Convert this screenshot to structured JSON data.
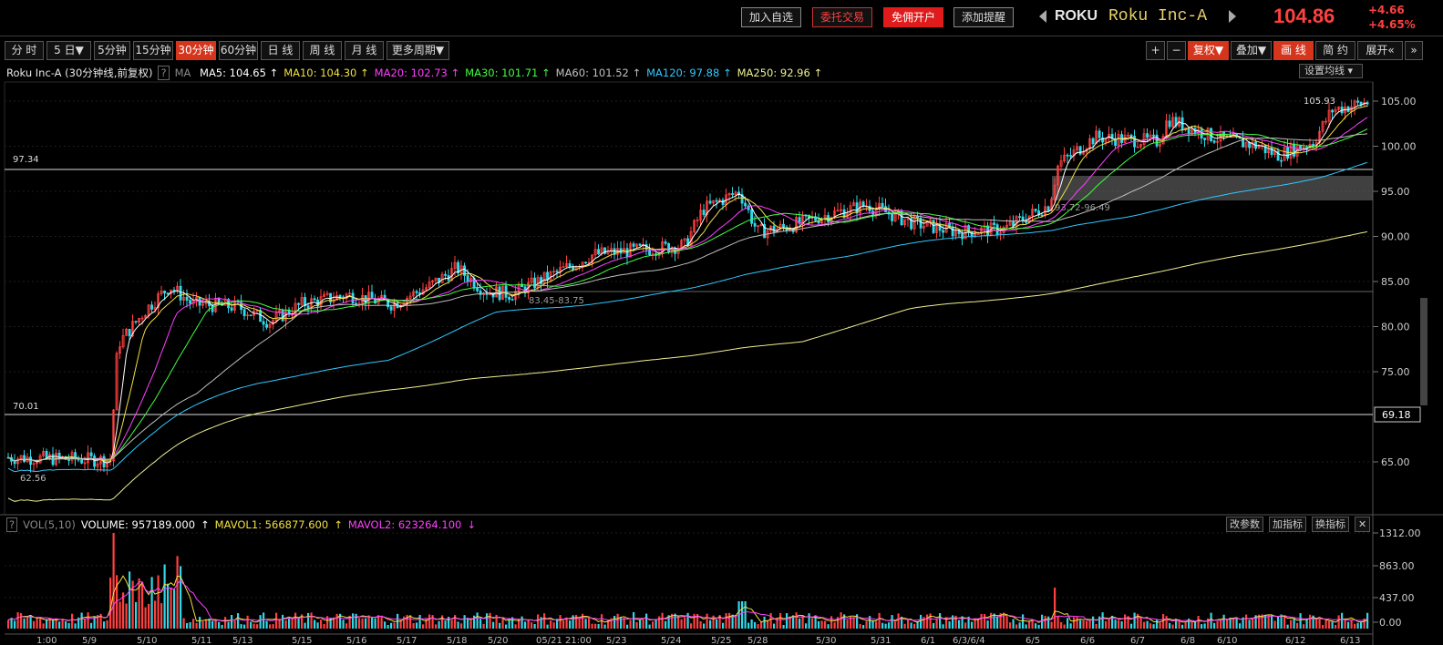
{
  "header": {
    "buttons": [
      "加入自选",
      "委托交易",
      "免佣开户",
      "添加提醒"
    ],
    "ticker": "ROKU",
    "name": "Roku Inc-A",
    "price": "104.86",
    "change": "+4.66",
    "change_pct": "+4.65%"
  },
  "periods": [
    "分 时",
    "5 日",
    "5分钟",
    "15分钟",
    "30分钟",
    "60分钟",
    "日 线",
    "周 线",
    "月 线",
    "更多周期"
  ],
  "active_period": "30分钟",
  "right_tools": [
    "+",
    "−",
    "复权",
    "叠加",
    "画 线",
    "简 约",
    "展开"
  ],
  "legend": {
    "title": "Roku Inc-A (30分钟线,前复权)",
    "help": "?",
    "ma_label": "MA",
    "ma": [
      {
        "name": "MA5",
        "value": "104.65",
        "color": "#ffffff"
      },
      {
        "name": "MA10",
        "value": "104.30",
        "color": "#f0e040"
      },
      {
        "name": "MA20",
        "value": "102.73",
        "color": "#ff40ff"
      },
      {
        "name": "MA30",
        "value": "101.71",
        "color": "#40ff40"
      },
      {
        "name": "MA60",
        "value": "101.52",
        "color": "#c0c0c0"
      },
      {
        "name": "MA120",
        "value": "97.88",
        "color": "#30c8ff"
      },
      {
        "name": "MA250",
        "value": "92.96",
        "color": "#f0f090"
      }
    ],
    "settings_label": "设置均线"
  },
  "price_axis": [
    "105.00",
    "100.00",
    "95.00",
    "90.00",
    "85.00",
    "80.00",
    "75.00",
    "65.00"
  ],
  "price_marker": "69.18",
  "levels": {
    "line1": "97.34",
    "line2": "70.01",
    "high": "105.93",
    "low": "62.56",
    "gap1": "83.45-83.75",
    "gap2": "93.72-96.49"
  },
  "volume": {
    "label": "VOL(5,10)",
    "volume_text": "VOLUME: 957189.000",
    "mavol1": "MAVOL1: 566877.600",
    "mavol2": "MAVOL2: 623264.100",
    "buttons": [
      "改参数",
      "加指标",
      "换指标",
      "✕"
    ],
    "axis": [
      "1312.00",
      "863.00",
      "437.00",
      "0.00"
    ]
  },
  "dates": [
    "1:00",
    "5/9",
    "5/10",
    "5/11",
    "5/13",
    "5/15",
    "5/16",
    "5/17",
    "5/18",
    "5/20",
    "05/21 21:00",
    "5/23",
    "5/24",
    "5/25",
    "5/28",
    "5/30",
    "5/31",
    "6/1",
    "6/3/6/4",
    "6/5",
    "6/6",
    "6/7",
    "6/8",
    "6/10",
    "6/12",
    "6/13"
  ]
}
